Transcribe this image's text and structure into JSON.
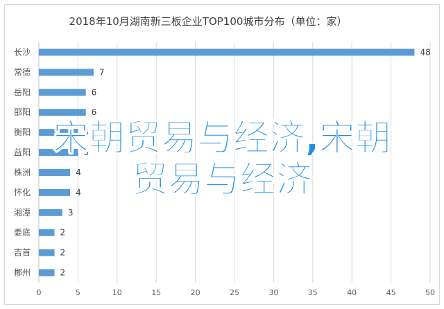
{
  "chart_data": {
    "type": "bar",
    "orientation": "horizontal",
    "title": "2018年10月湖南新三板企业TOP100城市分布（单位：家）",
    "categories": [
      "长沙",
      "常德",
      "岳阳",
      "邵阳",
      "衡阳",
      "益阳",
      "株洲",
      "怀化",
      "湘潭",
      "娄底",
      "吉首",
      "郴州"
    ],
    "values": [
      48,
      7,
      6,
      6,
      5,
      5,
      4,
      4,
      3,
      2,
      2,
      2
    ],
    "xlim": [
      0,
      50
    ],
    "xticks": [
      "0",
      "5",
      "10",
      "15",
      "20",
      "25",
      "30",
      "35",
      "40",
      "45",
      "50"
    ],
    "grid": true,
    "bar_color": "#5b9bd5"
  },
  "overlay": {
    "line1": "宋朝贸易与经济,宋朝",
    "line2": "贸易与经济",
    "color": "#1f8fe5"
  }
}
